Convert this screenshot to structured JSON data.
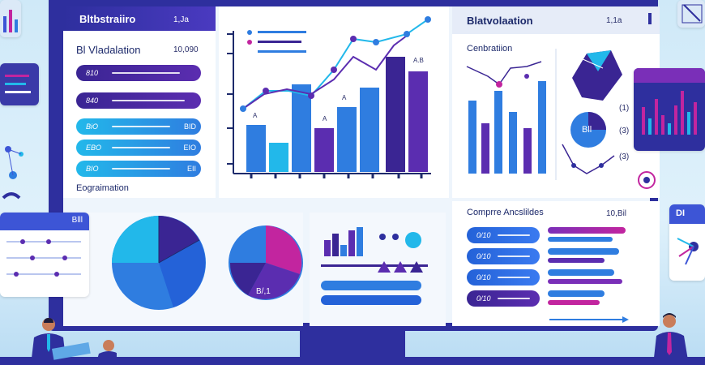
{
  "panel1": {
    "title": "Bltbstraiiro",
    "num": "1,Ja",
    "subtitle": "Bl Vladalation",
    "subnum": "10,090",
    "rows": [
      {
        "label": "810",
        "value": ""
      },
      {
        "label": "840",
        "value": ""
      },
      {
        "label": "BiO",
        "value": "BID"
      },
      {
        "label": "EBO",
        "value": "EIO"
      },
      {
        "label": "BIO",
        "value": "EII"
      }
    ],
    "footer": "Eograimation"
  },
  "panel2": {
    "labels": [
      "A",
      "A",
      "A",
      "A.B"
    ]
  },
  "panel3": {
    "title": "Blatvolaation",
    "num": "1,1a",
    "subtitle": "Cenbratiion",
    "badge": "Bll",
    "legend": [
      "(1)",
      "(3)",
      "(3)"
    ]
  },
  "panel4": {
    "title": "Comprre Ancslildes",
    "num": "10,Bil",
    "rows": [
      "0/10",
      "0/10",
      "0/10",
      "0/10"
    ]
  },
  "pie2": {
    "label": "B/,1"
  },
  "left_card": {
    "title": "Blll"
  },
  "right_card": {
    "title": "DI"
  },
  "colors": {
    "frame": "#2e2f9e",
    "blue": "#2f7de0",
    "purple": "#5b2db0",
    "cyan": "#22b8ea",
    "magenta": "#c2259f"
  }
}
